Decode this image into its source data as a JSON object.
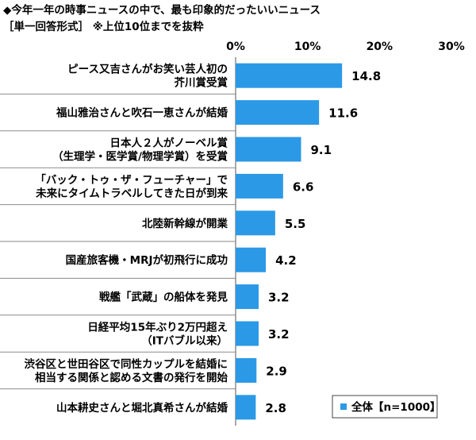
{
  "title": "◆今年一年の時事ニュースの中で、最も印象的だったいいニュース",
  "subtitle": "［単一回答形式］ ※上位10位までを抜粋",
  "chart_data": {
    "type": "bar",
    "orientation": "horizontal",
    "categories": [
      [
        "ピース又吉さんがお笑い芸人初の",
        "芥川賞受賞"
      ],
      [
        "福山雅治さんと吹石一恵さんが結婚"
      ],
      [
        "日本人２人がノーベル賞",
        "（生理学・医学賞/物理学賞）を受賞"
      ],
      [
        "「バック・トゥ・ザ・フューチャー」で",
        "未来にタイムトラベルしてきた日が到来"
      ],
      [
        "北陸新幹線が開業"
      ],
      [
        "国産旅客機・MRJが初飛行に成功"
      ],
      [
        "戦艦「武蔵」の船体を発見"
      ],
      [
        "日経平均15年ぶり2万円超え",
        "（ITバブル以来）"
      ],
      [
        "渋谷区と世田谷区で同性カップルを結婚に",
        "相当する関係と認める文書の発行を開始"
      ],
      [
        "山本耕史さんと堀北真希さんが結婚"
      ]
    ],
    "series": [
      {
        "name": "全体【n=1000】",
        "values": [
          14.8,
          11.6,
          9.1,
          6.6,
          5.5,
          4.2,
          3.2,
          3.2,
          2.9,
          2.8
        ]
      }
    ],
    "value_labels": [
      "14.8",
      "11.6",
      "9.1",
      "6.6",
      "5.5",
      "4.2",
      "3.2",
      "3.2",
      "2.9",
      "2.8"
    ],
    "xlim": [
      0,
      30
    ],
    "xticks": [
      0,
      10,
      20,
      30
    ],
    "xtick_labels": [
      "0%",
      "10%",
      "20%",
      "30%"
    ],
    "xaxis_position": "top",
    "grid": false,
    "legend_position": "bottom-right",
    "bar_color": "#2b99e6"
  }
}
